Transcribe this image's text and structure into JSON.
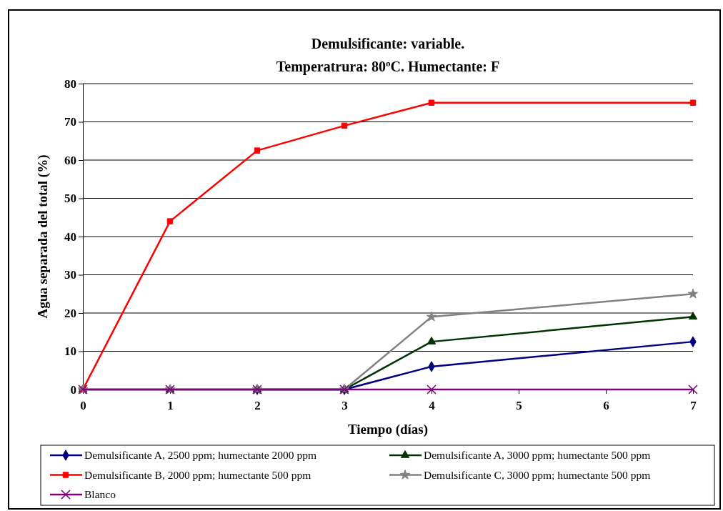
{
  "chart_data": {
    "type": "line",
    "title": "Demulsificante: variable.",
    "subtitle": "Temperatrura: 80ºC. Humectante: F",
    "xlabel": "Tiempo (días)",
    "ylabel": "Agua separada del total (%)",
    "x": [
      0,
      1,
      2,
      3,
      4,
      7
    ],
    "xlim": [
      0,
      7
    ],
    "xticks": [
      0,
      1,
      2,
      3,
      4,
      5,
      6,
      7
    ],
    "ylim": [
      0,
      80
    ],
    "yticks": [
      0,
      10,
      20,
      30,
      40,
      50,
      60,
      70,
      80
    ],
    "grid": "y",
    "legend": "bottom",
    "line_style": "solid",
    "series": [
      {
        "name": "Demulsificante A, 2500 ppm; humectante 2000 ppm",
        "color": "#000080",
        "marker": "diamond",
        "values": [
          null,
          null,
          0,
          0,
          6,
          12.5
        ]
      },
      {
        "name": "Demulsificante A, 3000 ppm; humectante 500 ppm",
        "color": "#003300",
        "marker": "triangle",
        "values": [
          0,
          0,
          0,
          0,
          12.5,
          19
        ]
      },
      {
        "name": "Demulsificante B, 2000 ppm; humectante 500 ppm",
        "color": "#ff0000",
        "marker": "square",
        "values": [
          0,
          44,
          62.5,
          69,
          75,
          75
        ]
      },
      {
        "name": "Demulsificante C, 3000 ppm; humectante 500 ppm",
        "color": "#808080",
        "marker": "star",
        "values": [
          0,
          0,
          0,
          0,
          19,
          25
        ]
      },
      {
        "name": "Blanco",
        "color": "#800080",
        "marker": "cross",
        "values": [
          0,
          0,
          0,
          0,
          0,
          0
        ]
      }
    ]
  }
}
